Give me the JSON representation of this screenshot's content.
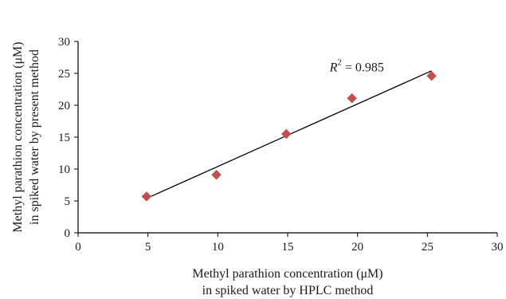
{
  "chart_data": {
    "type": "scatter",
    "title": "",
    "xlabel": [
      "Methyl parathion concentration (μM)",
      "in spiked water by HPLC method"
    ],
    "ylabel": [
      "Methyl parathion concentration (μM)",
      "in spiked water by present method"
    ],
    "xlim": [
      0,
      30
    ],
    "ylim": [
      0,
      30
    ],
    "xticks": [
      0,
      5,
      10,
      15,
      20,
      25,
      30
    ],
    "yticks": [
      0,
      5,
      10,
      15,
      20,
      25,
      30
    ],
    "grid": false,
    "legend": "none",
    "series": [
      {
        "x": [
          4.9,
          9.9,
          14.9,
          19.6,
          25.3
        ],
        "y": [
          5.7,
          9.1,
          15.5,
          21.1,
          24.6
        ],
        "marker": "diamond",
        "color": "#c0504d"
      }
    ],
    "trendline": {
      "type": "linear",
      "x": [
        4.9,
        25.3
      ],
      "y": [
        5.4,
        25.4
      ],
      "color": "#000000"
    },
    "annotations": [
      {
        "text_italic": "R",
        "superscript": "2",
        "text": " = 0.985",
        "x": 18.0,
        "y": 25.3
      }
    ]
  }
}
